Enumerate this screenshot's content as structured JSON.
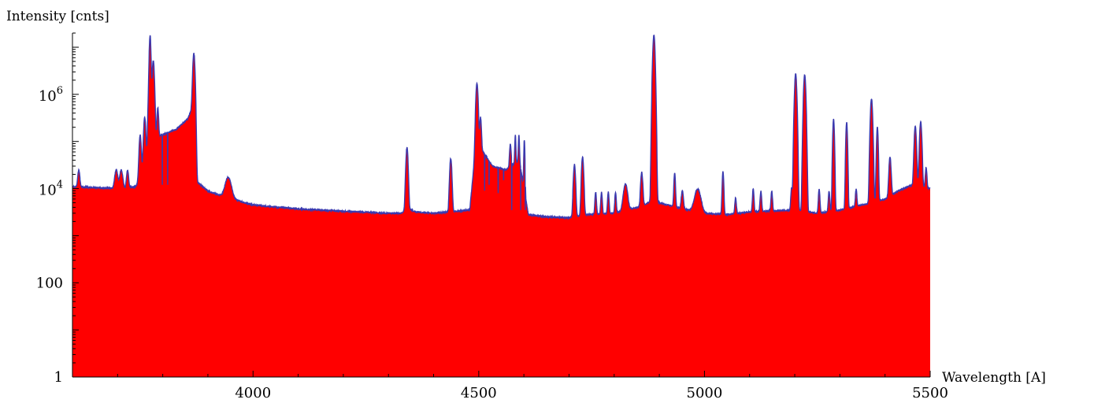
{
  "chart_data": {
    "type": "area",
    "title": "",
    "xlabel": "Wavelength [A]",
    "ylabel": "Intensity [cnts]",
    "xlim": [
      3600,
      5500
    ],
    "ylim": [
      1,
      20000000
    ],
    "y_scale": "log",
    "grid": false,
    "fill_color": "#ff0000",
    "line_color": "#3a3ab0",
    "x_ticks": [
      4000,
      4500,
      5000,
      5500
    ],
    "y_ticks": [
      {
        "value": 1,
        "label": "1"
      },
      {
        "value": 100,
        "label": "100"
      },
      {
        "value": 10000,
        "label": "10",
        "exp": "4"
      },
      {
        "value": 1000000,
        "label": "10",
        "exp": "6"
      }
    ],
    "continuum": [
      [
        3600,
        11000
      ],
      [
        3650,
        10500
      ],
      [
        3700,
        10000
      ],
      [
        3740,
        11000
      ],
      [
        3760,
        25000
      ],
      [
        3780,
        120000
      ],
      [
        3800,
        140000
      ],
      [
        3830,
        180000
      ],
      [
        3855,
        300000
      ],
      [
        3868,
        600000
      ],
      [
        3875,
        14000
      ],
      [
        3900,
        9000
      ],
      [
        3930,
        7000
      ],
      [
        4000,
        4500
      ],
      [
        4100,
        3700
      ],
      [
        4200,
        3300
      ],
      [
        4300,
        3000
      ],
      [
        4330,
        3000
      ],
      [
        4340,
        4000
      ],
      [
        4360,
        3200
      ],
      [
        4400,
        3000
      ],
      [
        4480,
        3500
      ],
      [
        4495,
        120000
      ],
      [
        4510,
        60000
      ],
      [
        4530,
        30000
      ],
      [
        4560,
        25000
      ],
      [
        4590,
        40000
      ],
      [
        4610,
        2800
      ],
      [
        4650,
        2500
      ],
      [
        4700,
        2400
      ],
      [
        4740,
        2800
      ],
      [
        4800,
        3000
      ],
      [
        4860,
        4200
      ],
      [
        4890,
        6000
      ],
      [
        4900,
        5000
      ],
      [
        4950,
        3800
      ],
      [
        5000,
        3000
      ],
      [
        5050,
        2800
      ],
      [
        5100,
        3200
      ],
      [
        5200,
        3500
      ],
      [
        5250,
        3000
      ],
      [
        5300,
        3500
      ],
      [
        5350,
        4500
      ],
      [
        5400,
        6000
      ],
      [
        5430,
        9000
      ],
      [
        5460,
        12000
      ],
      [
        5500,
        10000
      ]
    ],
    "peaks": [
      [
        3614,
        14000,
        2
      ],
      [
        3697,
        15000,
        3
      ],
      [
        3708,
        15000,
        3
      ],
      [
        3722,
        14000,
        2
      ],
      [
        3750,
        120000,
        2
      ],
      [
        3760,
        300000,
        2
      ],
      [
        3770,
        1000000,
        2
      ],
      [
        3772,
        17000000,
        1.5
      ],
      [
        3779,
        5000000,
        2
      ],
      [
        3789,
        400000,
        1.5
      ],
      [
        3869,
        7000000,
        2
      ],
      [
        3945,
        11000,
        6
      ],
      [
        4341,
        70000,
        2
      ],
      [
        4438,
        40000,
        2
      ],
      [
        4496,
        1600000,
        2
      ],
      [
        4504,
        250000,
        1.5
      ],
      [
        4570,
        60000,
        1.5
      ],
      [
        4581,
        100000,
        1
      ],
      [
        4589,
        100000,
        1
      ],
      [
        4601,
        100000,
        1
      ],
      [
        4712,
        30000,
        2
      ],
      [
        4730,
        45000,
        2
      ],
      [
        4759,
        5500,
        1.5
      ],
      [
        4772,
        5500,
        1.5
      ],
      [
        4787,
        5500,
        1.5
      ],
      [
        4803,
        5000,
        1.5
      ],
      [
        4825,
        9000,
        4
      ],
      [
        4861,
        18000,
        2
      ],
      [
        4888,
        18000000,
        2
      ],
      [
        4934,
        17000,
        1.5
      ],
      [
        4951,
        5500,
        2
      ],
      [
        4985,
        6500,
        6
      ],
      [
        5041,
        20000,
        1.5
      ],
      [
        5069,
        3500,
        1.5
      ],
      [
        5108,
        6500,
        1.5
      ],
      [
        5125,
        5500,
        1.5
      ],
      [
        5149,
        5500,
        1.5
      ],
      [
        5193,
        7000,
        1.5
      ],
      [
        5202,
        2700000,
        2
      ],
      [
        5222,
        2600000,
        2
      ],
      [
        5254,
        6500,
        1.5
      ],
      [
        5276,
        5500,
        1.5
      ],
      [
        5286,
        300000,
        1.5
      ],
      [
        5315,
        250000,
        1.5
      ],
      [
        5336,
        5500,
        1.5
      ],
      [
        5370,
        800000,
        2
      ],
      [
        5383,
        200000,
        1.5
      ],
      [
        5411,
        40000,
        2
      ],
      [
        5467,
        200000,
        2
      ],
      [
        5479,
        250000,
        2
      ],
      [
        5491,
        18000,
        1.5
      ]
    ],
    "dips": [
      [
        3799,
        12000
      ],
      [
        3811,
        12000
      ],
      [
        3822,
        200000
      ],
      [
        4513,
        9000
      ],
      [
        4523,
        12000
      ],
      [
        4543,
        8000
      ],
      [
        4555,
        15000
      ],
      [
        4573,
        3500
      ],
      [
        4593,
        3500
      ],
      [
        4603,
        3500
      ],
      [
        4618,
        2500
      ],
      [
        4627,
        2600
      ],
      [
        4633,
        2500
      ],
      [
        4640,
        2500
      ]
    ]
  }
}
